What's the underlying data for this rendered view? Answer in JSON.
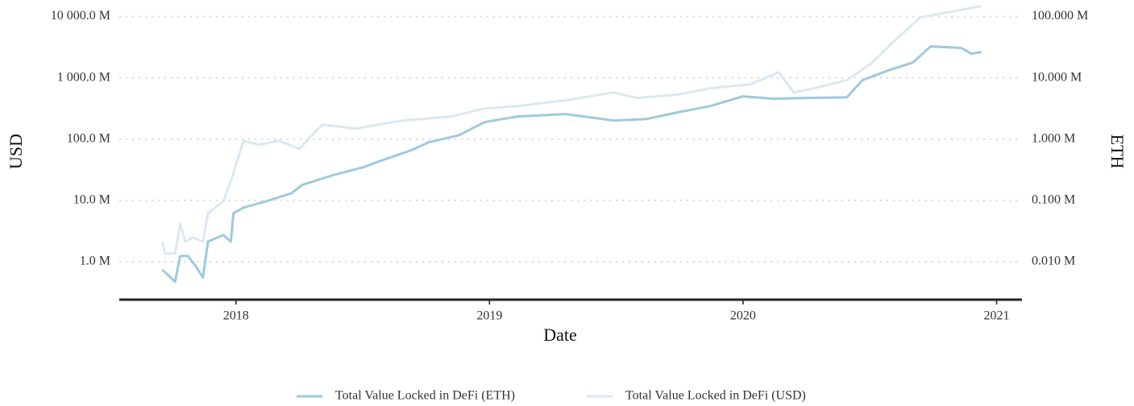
{
  "chart_data": {
    "type": "line",
    "x_label": "Date",
    "y_label": "USD",
    "y2_label": "ETH",
    "xlim": [
      2017.54,
      2021.1
    ],
    "xticks": [
      2018,
      2019,
      2020,
      2021
    ],
    "log_scale": true,
    "grid": true,
    "legend": "bottom",
    "ylim": [
      0.24,
      16000
    ],
    "yticks": [
      {
        "value": 1,
        "label": "1.0 M"
      },
      {
        "value": 10,
        "label": "10.0 M"
      },
      {
        "value": 100,
        "label": "100.0 M"
      },
      {
        "value": 1000,
        "label": "1 000.0 M"
      },
      {
        "value": 10000,
        "label": "10 000.0 M"
      }
    ],
    "y2lim": [
      0.0024,
      160
    ],
    "y2ticks": [
      {
        "value": 0.01,
        "label": "0.010 M"
      },
      {
        "value": 0.1,
        "label": "0.100 M"
      },
      {
        "value": 1,
        "label": "1.000 M"
      },
      {
        "value": 10,
        "label": "10.000 M"
      },
      {
        "value": 100,
        "label": "100.000 M"
      }
    ],
    "series": [
      {
        "name": "Total Value Locked in DeFi (ETH)",
        "color": "#9ecadc",
        "axis": "y2",
        "x": [
          2017.71,
          2017.76,
          2017.78,
          2017.81,
          2017.84,
          2017.87,
          2017.89,
          2017.95,
          2017.98,
          2017.99,
          2018.03,
          2018.12,
          2018.22,
          2018.26,
          2018.38,
          2018.5,
          2018.57,
          2018.69,
          2018.76,
          2018.88,
          2018.98,
          2019.11,
          2019.3,
          2019.49,
          2019.62,
          2019.74,
          2019.87,
          2020.0,
          2020.12,
          2020.25,
          2020.41,
          2020.47,
          2020.57,
          2020.67,
          2020.74,
          2020.86,
          2020.9,
          2020.94
        ],
        "values": [
          0.0074,
          0.0047,
          0.0124,
          0.0124,
          0.0086,
          0.0055,
          0.0213,
          0.0272,
          0.0213,
          0.0616,
          0.0762,
          0.097,
          0.131,
          0.178,
          0.256,
          0.346,
          0.442,
          0.654,
          0.885,
          1.16,
          1.89,
          2.34,
          2.56,
          2.01,
          2.13,
          2.72,
          3.46,
          4.98,
          4.55,
          4.69,
          4.83,
          9.14,
          13.1,
          17.8,
          32.6,
          30.7,
          24.8,
          26.4
        ]
      },
      {
        "name": "Total Value Locked in DeFi (USD)",
        "color": "#dbe8f1",
        "x": [
          2017.71,
          2017.72,
          2017.76,
          2017.78,
          2017.8,
          2017.83,
          2017.87,
          2017.89,
          2017.95,
          2017.98,
          2018.03,
          2018.09,
          2018.17,
          2018.25,
          2018.34,
          2018.47,
          2018.66,
          2018.85,
          2018.98,
          2019.11,
          2019.3,
          2019.49,
          2019.58,
          2019.74,
          2019.87,
          2020.03,
          2020.14,
          2020.2,
          2020.28,
          2020.41,
          2020.51,
          2020.6,
          2020.7,
          2020.82,
          2020.94
        ],
        "values": [
          2.13,
          1.35,
          1.35,
          4.15,
          2.13,
          2.48,
          2.13,
          6.16,
          9.7,
          20.7,
          94,
          81,
          94,
          69,
          173,
          148,
          201,
          234,
          316,
          346,
          428,
          579,
          469,
          529,
          674,
          785,
          1236,
          579,
          674,
          914,
          1778,
          4150,
          9700,
          12000,
          14800
        ]
      }
    ]
  }
}
